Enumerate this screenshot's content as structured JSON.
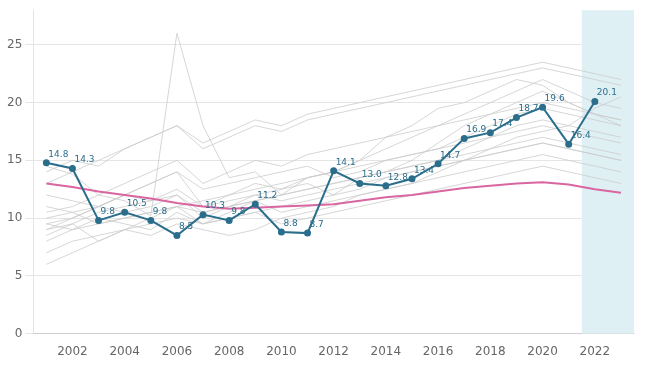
{
  "chart_data": {
    "type": "line",
    "x": [
      2001,
      2002,
      2003,
      2004,
      2005,
      2006,
      2007,
      2008,
      2009,
      2010,
      2011,
      2012,
      2013,
      2014,
      2015,
      2016,
      2017,
      2018,
      2019,
      2020,
      2021,
      2022,
      2023
    ],
    "xlim": [
      2000.5,
      2023.5
    ],
    "xticks": [
      2002,
      2004,
      2006,
      2008,
      2010,
      2012,
      2014,
      2016,
      2018,
      2020,
      2022
    ],
    "ylim": [
      0,
      28
    ],
    "yticks": [
      0,
      5,
      10,
      15,
      20,
      25
    ],
    "grid": "y",
    "highlight": {
      "xlim": [
        2021.5,
        2023.5
      ],
      "color": "#dff0f5"
    },
    "series": [
      {
        "color": "#cccccc",
        "values": [
          14.5,
          13.8,
          12.0,
          11.5,
          10.2,
          26.0,
          18.0,
          13.5,
          14.0,
          12.0,
          13.5,
          14.0,
          15.0,
          17.0,
          18.0,
          19.5,
          20.0,
          21.0,
          22.0,
          21.5,
          20.0,
          19.0,
          18.5
        ]
      },
      {
        "color": "#cccccc",
        "values": [
          9.0,
          9.5,
          8.0,
          9.0,
          8.5,
          9.5,
          9.0,
          8.5,
          9.0,
          10.0,
          10.5,
          11.0,
          12.0,
          12.5,
          13.0,
          14.0,
          15.0,
          16.0,
          17.0,
          17.5,
          18.0,
          19.5,
          20.5
        ]
      },
      {
        "color": "#cccccc",
        "values": [
          10.0,
          10.5,
          11.0,
          12.0,
          11.5,
          12.5,
          11.0,
          11.5,
          12.0,
          12.5,
          13.0,
          12.0,
          13.5,
          14.0,
          15.0,
          16.5,
          18.0,
          19.0,
          20.0,
          21.0,
          20.0,
          19.0,
          18.0
        ]
      },
      {
        "color": "#cccccc",
        "values": [
          9.5,
          9.0,
          10.0,
          9.5,
          9.0,
          10.5,
          9.5,
          10.0,
          10.5,
          11.0,
          11.5,
          12.0,
          12.5,
          13.5,
          14.0,
          14.5,
          15.0,
          15.5,
          16.0,
          16.5,
          16.0,
          15.5,
          15.0
        ]
      },
      {
        "color": "#cccccc",
        "values": [
          8.0,
          9.0,
          9.5,
          10.0,
          10.5,
          11.0,
          10.5,
          11.0,
          11.5,
          12.0,
          12.5,
          13.0,
          13.5,
          14.0,
          14.5,
          15.0,
          16.0,
          17.0,
          18.0,
          18.5,
          18.0,
          17.5,
          17.0
        ]
      },
      {
        "color": "#cccccc",
        "values": [
          12.0,
          11.5,
          11.0,
          12.0,
          13.0,
          14.0,
          12.5,
          13.0,
          13.5,
          14.0,
          14.5,
          13.5,
          14.0,
          15.0,
          15.5,
          16.0,
          17.0,
          18.0,
          19.0,
          19.5,
          19.0,
          18.5,
          18.0
        ]
      },
      {
        "color": "#cccccc",
        "values": [
          7.0,
          8.0,
          8.5,
          9.0,
          9.5,
          10.0,
          9.5,
          10.0,
          10.5,
          9.5,
          10.0,
          10.5,
          11.0,
          11.5,
          12.0,
          12.5,
          13.0,
          13.5,
          14.0,
          14.5,
          14.0,
          13.5,
          13.0
        ]
      },
      {
        "color": "#cccccc",
        "values": [
          11.0,
          10.5,
          9.5,
          10.0,
          10.5,
          11.0,
          11.5,
          12.0,
          12.5,
          13.0,
          13.5,
          14.0,
          15.0,
          16.0,
          17.0,
          18.0,
          19.0,
          20.0,
          21.0,
          22.0,
          21.0,
          20.0,
          19.5
        ]
      },
      {
        "color": "#cccccc",
        "values": [
          9.0,
          10.0,
          11.0,
          12.0,
          13.0,
          14.0,
          11.0,
          12.0,
          13.0,
          12.5,
          13.5,
          14.0,
          14.5,
          15.0,
          15.5,
          16.0,
          16.5,
          17.0,
          17.5,
          18.0,
          17.5,
          17.0,
          16.5
        ]
      },
      {
        "color": "#cccccc",
        "values": [
          6.0,
          7.0,
          8.0,
          9.0,
          10.0,
          11.0,
          9.5,
          10.5,
          11.5,
          10.5,
          11.0,
          11.5,
          12.0,
          12.5,
          13.0,
          13.5,
          14.0,
          14.5,
          15.0,
          15.5,
          15.0,
          14.5,
          14.0
        ]
      },
      {
        "color": "#cccccc",
        "values": [
          14.0,
          15.0,
          14.5,
          16.0,
          17.0,
          18.0,
          16.0,
          17.0,
          18.0,
          17.5,
          18.5,
          19.0,
          19.5,
          20.0,
          20.5,
          21.0,
          21.5,
          22.0,
          22.5,
          23.0,
          22.5,
          22.0,
          21.5
        ]
      },
      {
        "color": "#cccccc",
        "values": [
          8.5,
          9.5,
          10.5,
          11.0,
          11.5,
          12.0,
          10.5,
          11.0,
          11.5,
          12.0,
          12.5,
          13.0,
          13.5,
          14.0,
          14.5,
          15.0,
          15.5,
          16.0,
          16.5,
          17.0,
          16.5,
          16.0,
          15.5
        ]
      },
      {
        "color": "#cccccc",
        "values": [
          10.5,
          11.0,
          12.0,
          13.0,
          14.0,
          15.0,
          13.0,
          14.0,
          15.0,
          14.5,
          15.5,
          16.0,
          16.5,
          17.0,
          17.5,
          18.0,
          18.5,
          19.0,
          19.5,
          20.0,
          19.5,
          19.0,
          18.5
        ]
      },
      {
        "color": "#cccccc",
        "values": [
          9.5,
          10.0,
          11.0,
          10.5,
          11.0,
          12.0,
          10.0,
          11.0,
          12.0,
          11.5,
          12.0,
          12.5,
          13.0,
          13.5,
          14.0,
          14.5,
          15.0,
          15.5,
          16.0,
          16.5,
          16.0,
          15.5,
          15.0
        ]
      },
      {
        "color": "#cccccc",
        "values": [
          13.0,
          14.0,
          15.0,
          16.0,
          17.0,
          18.0,
          16.5,
          17.5,
          18.5,
          18.0,
          19.0,
          19.5,
          20.0,
          20.5,
          21.0,
          21.5,
          22.0,
          22.5,
          23.0,
          23.5,
          23.0,
          22.5,
          22.0
        ]
      },
      {
        "color": "#d966a0",
        "values": [
          13.0,
          12.7,
          12.3,
          12.0,
          11.7,
          11.3,
          11.0,
          10.8,
          10.9,
          11.0,
          11.1,
          11.2,
          11.5,
          11.8,
          12.0,
          12.3,
          12.6,
          12.8,
          13.0,
          13.1,
          12.9,
          12.5,
          12.2
        ]
      },
      {
        "color": "#2a6e8c",
        "marker": "circle",
        "data_labels": true,
        "values": [
          14.8,
          14.3,
          9.8,
          10.5,
          9.8,
          8.5,
          10.3,
          9.8,
          11.2,
          8.8,
          8.7,
          14.1,
          13.0,
          12.8,
          13.4,
          14.7,
          16.9,
          17.4,
          18.7,
          19.6,
          16.4,
          20.1,
          null
        ],
        "value_labels": [
          "14.8",
          "14.3",
          "9.8",
          "10.5",
          "9.8",
          "8.5",
          "10.3",
          "9.8",
          "11.2",
          "8.8",
          "8.7",
          "14.1",
          "13.0",
          "12.8",
          "13.4",
          "14.7",
          "16.9",
          "17.4",
          "18.7",
          "19.6",
          "16.4",
          "20.1",
          null
        ]
      }
    ]
  }
}
